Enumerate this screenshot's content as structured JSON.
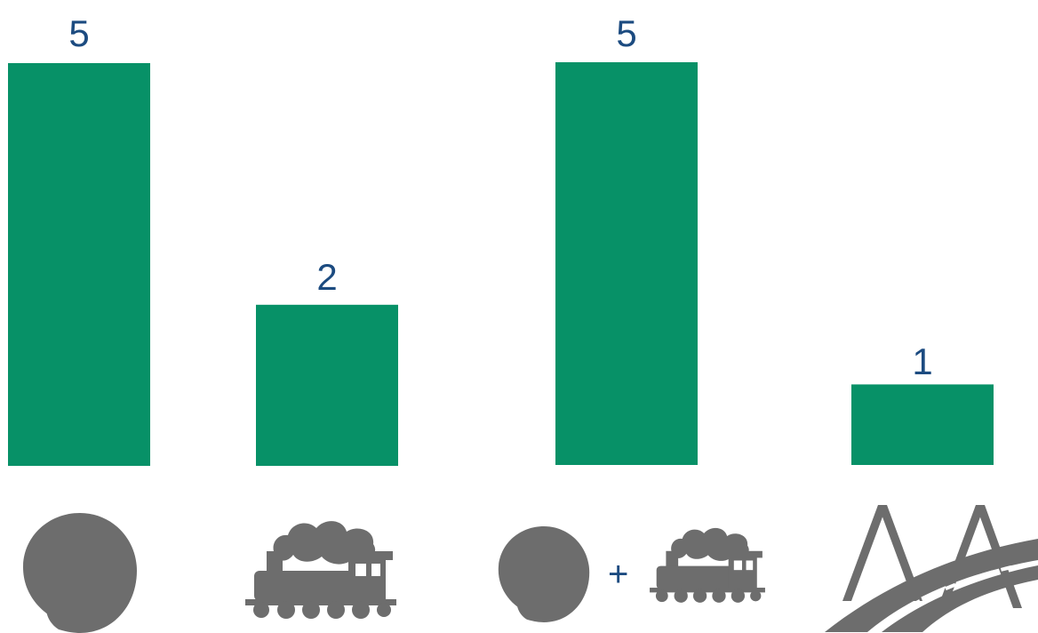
{
  "colors": {
    "bar": "#079167",
    "label": "#1c4b80",
    "icon": "#6d6d6d"
  },
  "chart_data": {
    "type": "bar",
    "categories": [
      "river-icon",
      "steam-train-icon",
      "river-plus-train-icon",
      "bridge-road-icon"
    ],
    "values": [
      5,
      2,
      5,
      1
    ],
    "data_labels": [
      "5",
      "2",
      "5",
      "1"
    ],
    "ylim": [
      0,
      5
    ],
    "grid": false,
    "legend": "none"
  },
  "combo_plus": "+"
}
